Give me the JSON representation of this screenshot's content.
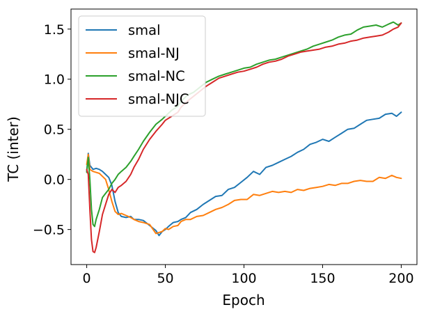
{
  "chart_data": {
    "type": "line",
    "title": "",
    "xlabel": "Epoch",
    "ylabel": "TC (inter)",
    "xlim": [
      -10,
      210
    ],
    "ylim": [
      -0.85,
      1.7
    ],
    "xticks": [
      0,
      50,
      100,
      150,
      200
    ],
    "xtick_labels": [
      "0",
      "50",
      "100",
      "150",
      "200"
    ],
    "yticks": [
      -0.5,
      0.0,
      0.5,
      1.0,
      1.5
    ],
    "ytick_labels": [
      "−0.5",
      "0.0",
      "0.5",
      "1.0",
      "1.5"
    ],
    "grid": false,
    "legend_position": "top-left",
    "series": [
      {
        "name": "smal",
        "color": "#1f77b4",
        "x": [
          0,
          1,
          2,
          4,
          6,
          8,
          10,
          12,
          14,
          16,
          18,
          20,
          22,
          25,
          28,
          30,
          33,
          36,
          40,
          44,
          46,
          48,
          50,
          52,
          55,
          58,
          60,
          63,
          66,
          70,
          74,
          78,
          82,
          86,
          90,
          94,
          98,
          102,
          106,
          110,
          114,
          118,
          122,
          126,
          130,
          134,
          138,
          142,
          146,
          150,
          154,
          158,
          162,
          166,
          170,
          174,
          178,
          182,
          186,
          190,
          194,
          197,
          200
        ],
        "y": [
          0.08,
          0.26,
          0.14,
          0.1,
          0.11,
          0.1,
          0.08,
          0.05,
          0.02,
          -0.06,
          -0.22,
          -0.33,
          -0.37,
          -0.38,
          -0.37,
          -0.4,
          -0.4,
          -0.41,
          -0.46,
          -0.51,
          -0.56,
          -0.52,
          -0.5,
          -0.47,
          -0.43,
          -0.42,
          -0.4,
          -0.38,
          -0.33,
          -0.3,
          -0.25,
          -0.21,
          -0.17,
          -0.16,
          -0.1,
          -0.08,
          -0.03,
          0.02,
          0.08,
          0.05,
          0.12,
          0.14,
          0.17,
          0.2,
          0.23,
          0.27,
          0.3,
          0.35,
          0.37,
          0.4,
          0.38,
          0.42,
          0.46,
          0.5,
          0.51,
          0.55,
          0.59,
          0.6,
          0.61,
          0.65,
          0.66,
          0.63,
          0.67
        ]
      },
      {
        "name": "smal-NJ",
        "color": "#ff7f0e",
        "x": [
          0,
          1,
          2,
          4,
          6,
          8,
          10,
          12,
          14,
          16,
          18,
          20,
          22,
          25,
          28,
          30,
          33,
          36,
          40,
          44,
          48,
          50,
          52,
          55,
          58,
          60,
          63,
          66,
          70,
          74,
          78,
          82,
          86,
          90,
          94,
          98,
          102,
          106,
          110,
          114,
          118,
          122,
          126,
          130,
          134,
          138,
          142,
          146,
          150,
          154,
          158,
          162,
          166,
          170,
          174,
          178,
          182,
          186,
          190,
          194,
          197,
          200
        ],
        "y": [
          0.15,
          0.25,
          0.1,
          0.08,
          0.07,
          0.06,
          0.03,
          0.0,
          -0.1,
          -0.22,
          -0.32,
          -0.35,
          -0.34,
          -0.36,
          -0.38,
          -0.4,
          -0.42,
          -0.43,
          -0.45,
          -0.54,
          -0.52,
          -0.49,
          -0.5,
          -0.47,
          -0.46,
          -0.42,
          -0.4,
          -0.4,
          -0.37,
          -0.36,
          -0.33,
          -0.3,
          -0.28,
          -0.25,
          -0.21,
          -0.2,
          -0.2,
          -0.15,
          -0.16,
          -0.14,
          -0.12,
          -0.13,
          -0.12,
          -0.13,
          -0.1,
          -0.11,
          -0.09,
          -0.08,
          -0.07,
          -0.05,
          -0.06,
          -0.04,
          -0.04,
          -0.02,
          -0.01,
          -0.02,
          -0.02,
          0.02,
          0.01,
          0.04,
          0.02,
          0.01
        ]
      },
      {
        "name": "smal-NC",
        "color": "#2ca02c",
        "x": [
          0,
          1,
          2,
          3,
          4,
          5,
          6,
          8,
          10,
          12,
          14,
          16,
          18,
          20,
          22,
          25,
          28,
          30,
          33,
          36,
          40,
          44,
          48,
          50,
          54,
          58,
          60,
          64,
          68,
          72,
          76,
          80,
          84,
          88,
          92,
          96,
          100,
          104,
          108,
          112,
          116,
          120,
          124,
          128,
          132,
          136,
          140,
          144,
          148,
          152,
          156,
          160,
          164,
          168,
          172,
          176,
          180,
          184,
          188,
          192,
          195,
          198,
          200
        ],
        "y": [
          0.07,
          0.22,
          0.0,
          -0.3,
          -0.45,
          -0.47,
          -0.4,
          -0.3,
          -0.18,
          -0.14,
          -0.1,
          -0.04,
          0.0,
          0.05,
          0.08,
          0.12,
          0.18,
          0.23,
          0.3,
          0.38,
          0.47,
          0.55,
          0.6,
          0.63,
          0.69,
          0.73,
          0.78,
          0.84,
          0.87,
          0.92,
          0.97,
          1.0,
          1.03,
          1.05,
          1.07,
          1.09,
          1.11,
          1.12,
          1.15,
          1.17,
          1.19,
          1.2,
          1.22,
          1.24,
          1.26,
          1.28,
          1.3,
          1.33,
          1.35,
          1.37,
          1.39,
          1.42,
          1.44,
          1.45,
          1.49,
          1.52,
          1.53,
          1.54,
          1.52,
          1.55,
          1.57,
          1.54,
          1.56
        ]
      },
      {
        "name": "smal-NJC",
        "color": "#d62728",
        "x": [
          0,
          1,
          2,
          3,
          4,
          5,
          6,
          8,
          10,
          12,
          14,
          16,
          18,
          20,
          22,
          25,
          28,
          30,
          33,
          36,
          40,
          44,
          48,
          50,
          54,
          58,
          60,
          64,
          68,
          72,
          76,
          80,
          84,
          88,
          92,
          96,
          100,
          104,
          108,
          112,
          116,
          120,
          124,
          128,
          132,
          136,
          140,
          144,
          148,
          152,
          156,
          160,
          164,
          168,
          172,
          176,
          180,
          184,
          188,
          192,
          195,
          198,
          200
        ],
        "y": [
          0.1,
          0.05,
          -0.3,
          -0.6,
          -0.72,
          -0.73,
          -0.68,
          -0.52,
          -0.35,
          -0.25,
          -0.15,
          -0.1,
          -0.13,
          -0.08,
          -0.06,
          -0.02,
          0.05,
          0.12,
          0.2,
          0.3,
          0.4,
          0.48,
          0.55,
          0.59,
          0.63,
          0.67,
          0.72,
          0.78,
          0.83,
          0.88,
          0.93,
          0.97,
          1.01,
          1.03,
          1.05,
          1.07,
          1.08,
          1.1,
          1.12,
          1.15,
          1.17,
          1.18,
          1.2,
          1.23,
          1.25,
          1.27,
          1.28,
          1.29,
          1.3,
          1.32,
          1.33,
          1.35,
          1.36,
          1.38,
          1.39,
          1.41,
          1.42,
          1.43,
          1.44,
          1.47,
          1.5,
          1.52,
          1.56
        ]
      }
    ]
  }
}
